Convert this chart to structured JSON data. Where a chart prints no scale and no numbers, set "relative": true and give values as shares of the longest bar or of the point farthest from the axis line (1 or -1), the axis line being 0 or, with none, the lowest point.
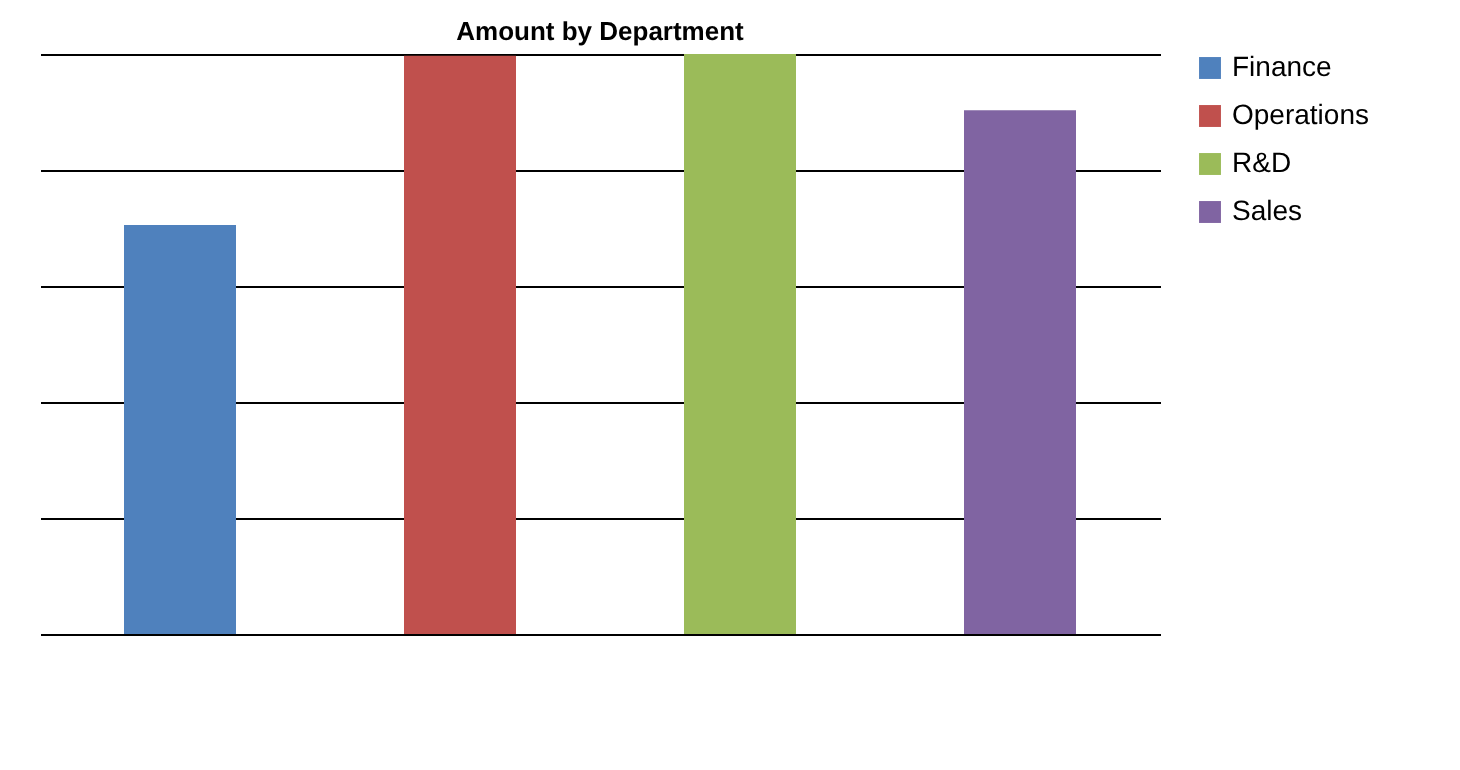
{
  "chart_data": {
    "type": "bar",
    "title": "Amount by Department",
    "relative": true,
    "stacked": true,
    "categories": [
      null,
      null,
      null,
      null
    ],
    "series": [
      {
        "name": "Finance",
        "color": "#4f81bd",
        "values": [
          0.705,
          null,
          null,
          null
        ]
      },
      {
        "name": "Operations",
        "color": "#c0504d",
        "values": [
          null,
          0.997,
          null,
          null
        ]
      },
      {
        "name": "R&D",
        "color": "#9bbb59",
        "values": [
          null,
          null,
          1,
          null
        ]
      },
      {
        "name": "Sales",
        "color": "#8064a2",
        "values": [
          null,
          null,
          null,
          0.903
        ]
      }
    ],
    "grid": true,
    "legend": "right"
  }
}
